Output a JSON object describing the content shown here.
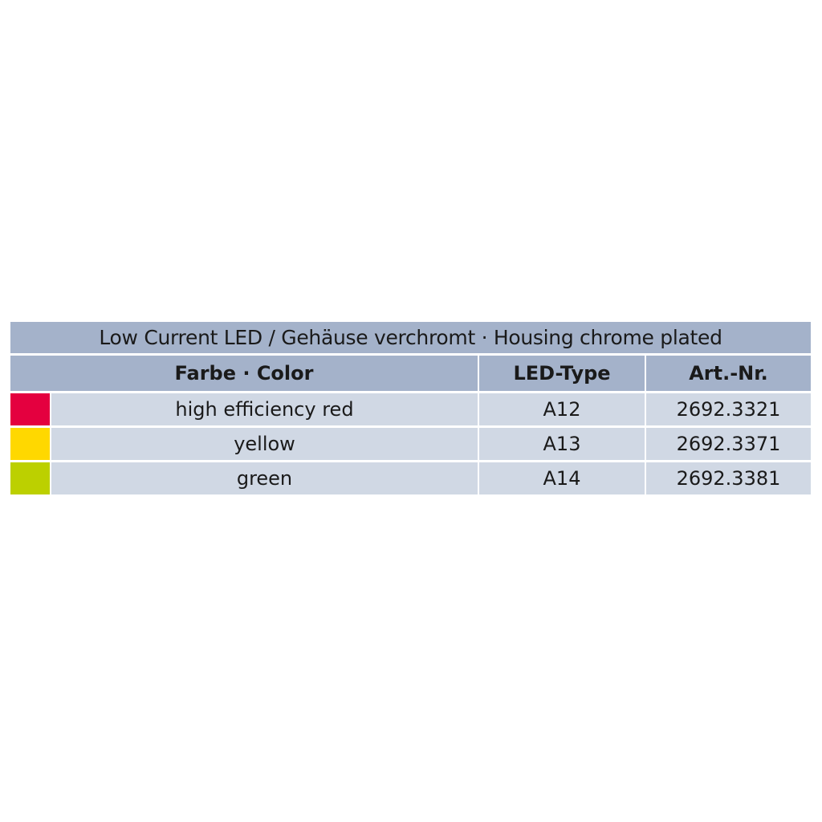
{
  "title": "Low Current LED / Gehäuse verchromt · Housing chrome plated",
  "headers": {
    "color": "Farbe · Color",
    "led_type": "LED-Type",
    "art_nr": "Art.-Nr."
  },
  "rows": [
    {
      "swatch": "#e4003f",
      "color": "high efficiency red",
      "led_type": "A12",
      "art_nr": "2692.3321"
    },
    {
      "swatch": "#ffd800",
      "color": "yellow",
      "led_type": "A13",
      "art_nr": "2692.3371"
    },
    {
      "swatch": "#bcd000",
      "color": "green",
      "led_type": "A14",
      "art_nr": "2692.3381"
    }
  ]
}
